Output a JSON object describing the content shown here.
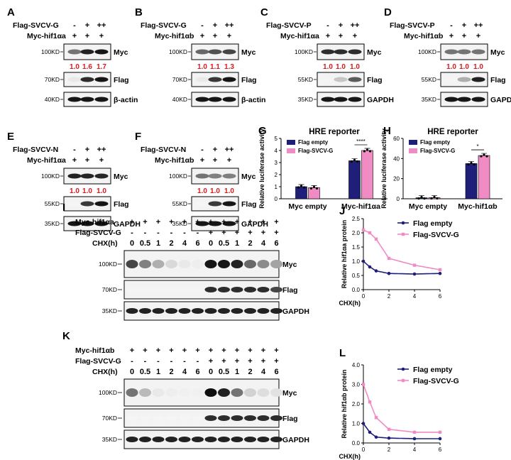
{
  "colors": {
    "empty": "#1f1f7a",
    "svcv": "#f08bc3",
    "red": "#d7191c"
  },
  "panel_letters": [
    "A",
    "B",
    "C",
    "D",
    "E",
    "F",
    "G",
    "H",
    "I",
    "J",
    "K",
    "L"
  ],
  "western_panels": [
    {
      "letter": "A",
      "row1": "Flag-SVCV-G",
      "row2": "Myc-hif1αa",
      "row1_marks": [
        "-",
        "+",
        "++"
      ],
      "row2_marks": [
        "+",
        "+",
        "+"
      ],
      "bands": [
        {
          "label": "Myc",
          "marker": "100KD"
        },
        {
          "label": "Flag",
          "marker": "70KD"
        },
        {
          "label": "β-actin",
          "marker": "40KD"
        }
      ],
      "ratios": [
        "1.0",
        "1.6",
        "1.7"
      ]
    },
    {
      "letter": "B",
      "row1": "Flag-SVCV-G",
      "row2": "Myc-hif1αb",
      "row1_marks": [
        "-",
        "+",
        "++"
      ],
      "row2_marks": [
        "+",
        "+",
        "+"
      ],
      "bands": [
        {
          "label": "Myc",
          "marker": "100KD"
        },
        {
          "label": "Flag",
          "marker": "70KD"
        },
        {
          "label": "β-actin",
          "marker": "40KD"
        }
      ],
      "ratios": [
        "1.0",
        "1.1",
        "1.3"
      ]
    },
    {
      "letter": "C",
      "row1": "Flag-SVCV-P",
      "row2": "Myc-hif1αa",
      "row1_marks": [
        "-",
        "+",
        "++"
      ],
      "row2_marks": [
        "+",
        "+",
        "+"
      ],
      "bands": [
        {
          "label": "Myc",
          "marker": "100KD"
        },
        {
          "label": "Flag",
          "marker": "55KD"
        },
        {
          "label": "GAPDH",
          "marker": "35KD"
        }
      ],
      "ratios": [
        "1.0",
        "1.0",
        "1.0"
      ]
    },
    {
      "letter": "D",
      "row1": "Flag-SVCV-P",
      "row2": "Myc-hif1αb",
      "row1_marks": [
        "-",
        "+",
        "++"
      ],
      "row2_marks": [
        "+",
        "+",
        "+"
      ],
      "bands": [
        {
          "label": "Myc",
          "marker": "100KD"
        },
        {
          "label": "Flag",
          "marker": "55KD"
        },
        {
          "label": "GAPDH",
          "marker": "35KD"
        }
      ],
      "ratios": [
        "1.0",
        "1.0",
        "1.0"
      ]
    },
    {
      "letter": "E",
      "row1": "Flag-SVCV-N",
      "row2": "Myc-hif1αa",
      "row1_marks": [
        "-",
        "+",
        "++"
      ],
      "row2_marks": [
        "+",
        "+",
        "+"
      ],
      "bands": [
        {
          "label": "Myc",
          "marker": "100KD"
        },
        {
          "label": "Flag",
          "marker": "55KD"
        },
        {
          "label": "GAPDH",
          "marker": "35KD"
        }
      ],
      "ratios": [
        "1.0",
        "1.0",
        "1.0"
      ]
    },
    {
      "letter": "F",
      "row1": "Flag-SVCV-N",
      "row2": "Myc-hif1αb",
      "row1_marks": [
        "-",
        "+",
        "++"
      ],
      "row2_marks": [
        "+",
        "+",
        "+"
      ],
      "bands": [
        {
          "label": "Myc",
          "marker": "100KD"
        },
        {
          "label": "Flag",
          "marker": "55KD"
        },
        {
          "label": "GAPDH",
          "marker": "35KD"
        }
      ],
      "ratios": [
        "1.0",
        "1.0",
        "1.0"
      ]
    }
  ],
  "chx_panels": [
    {
      "letter": "I",
      "row1": "Myc-hif1αa",
      "row2": "Flag-SVCV-G",
      "row3": "CHX(h)",
      "row1_marks": [
        "+",
        "+",
        "+",
        "+",
        "+",
        "+",
        "+",
        "+",
        "+",
        "+",
        "+",
        "+"
      ],
      "row2_marks": [
        "-",
        "-",
        "-",
        "-",
        "-",
        "-",
        "+",
        "+",
        "+",
        "+",
        "+",
        "+"
      ],
      "times": [
        "0",
        "0.5",
        "1",
        "2",
        "4",
        "6",
        "0",
        "0.5",
        "1",
        "2",
        "4",
        "6"
      ],
      "bands": [
        {
          "label": "Myc",
          "marker": "100KD"
        },
        {
          "label": "Flag",
          "marker": "70KD"
        },
        {
          "label": "GAPDH",
          "marker": "35KD"
        }
      ]
    },
    {
      "letter": "K",
      "row1": "Myc-hif1αb",
      "row2": "Flag-SVCV-G",
      "row3": "CHX(h)",
      "row1_marks": [
        "+",
        "+",
        "+",
        "+",
        "+",
        "+",
        "+",
        "+",
        "+",
        "+",
        "+",
        "+"
      ],
      "row2_marks": [
        "-",
        "-",
        "-",
        "-",
        "-",
        "-",
        "+",
        "+",
        "+",
        "+",
        "+",
        "+"
      ],
      "times": [
        "0",
        "0.5",
        "1",
        "2",
        "4",
        "6",
        "0",
        "0.5",
        "1",
        "2",
        "4",
        "6"
      ],
      "bands": [
        {
          "label": "Myc",
          "marker": "100KD"
        },
        {
          "label": "Flag",
          "marker": "70KD"
        },
        {
          "label": "GAPDH",
          "marker": "35KD"
        }
      ]
    }
  ],
  "chart_data": [
    {
      "id": "G",
      "type": "bar",
      "title": "HRE reporter",
      "ylabel": "Relative luciferase activity",
      "xlabel": "",
      "categories": [
        "Myc empty",
        "Myc-hif1αa"
      ],
      "ylim": [
        0,
        5
      ],
      "yticks": [
        0,
        1,
        2,
        3,
        4,
        5
      ],
      "series": [
        {
          "name": "Flag empty",
          "values": [
            1.0,
            3.15
          ]
        },
        {
          "name": "Flag-SVCV-G",
          "values": [
            0.92,
            4.0
          ]
        }
      ],
      "significance": "****",
      "legend": "top-left"
    },
    {
      "id": "H",
      "type": "bar",
      "title": "HRE reporter",
      "ylabel": "Relative luciferase activity",
      "xlabel": "",
      "categories": [
        "Myc empty",
        "Myc-hif1αb"
      ],
      "ylim": [
        0,
        60
      ],
      "yticks": [
        0,
        20,
        40,
        60
      ],
      "series": [
        {
          "name": "Flag empty",
          "values": [
            1.0,
            35.0
          ]
        },
        {
          "name": "Flag-SVCV-G",
          "values": [
            1.1,
            43.0
          ]
        }
      ],
      "significance": "*",
      "legend": "top-left"
    },
    {
      "id": "J",
      "type": "line",
      "ylabel": "Relative hif1αa protein",
      "xlabel": "CHX(h)",
      "x": [
        0,
        0.5,
        1,
        2,
        4,
        6
      ],
      "xticks": [
        0,
        2,
        4,
        6
      ],
      "ylim": [
        0,
        2.5
      ],
      "yticks": [
        0.0,
        0.5,
        1.0,
        1.5,
        2.0,
        2.5
      ],
      "series": [
        {
          "name": "Flag empty",
          "values": [
            1.0,
            0.8,
            0.66,
            0.57,
            0.55,
            0.57
          ]
        },
        {
          "name": "Flag-SVCV-G",
          "values": [
            2.1,
            2.0,
            1.78,
            1.1,
            0.86,
            0.7
          ]
        }
      ],
      "legend": "top-right"
    },
    {
      "id": "L",
      "type": "line",
      "ylabel": "Relative hif1αb protein",
      "xlabel": "CHX(h)",
      "x": [
        0,
        0.5,
        1,
        2,
        4,
        6
      ],
      "xticks": [
        0,
        2,
        4,
        6
      ],
      "ylim": [
        0,
        4
      ],
      "yticks": [
        0.0,
        1.0,
        2.0,
        3.0,
        4.0
      ],
      "series": [
        {
          "name": "Flag empty",
          "values": [
            1.0,
            0.55,
            0.3,
            0.25,
            0.22,
            0.22
          ]
        },
        {
          "name": "Flag-SVCV-G",
          "values": [
            3.0,
            2.1,
            1.3,
            0.7,
            0.55,
            0.55
          ]
        }
      ],
      "legend": "top-right"
    }
  ]
}
